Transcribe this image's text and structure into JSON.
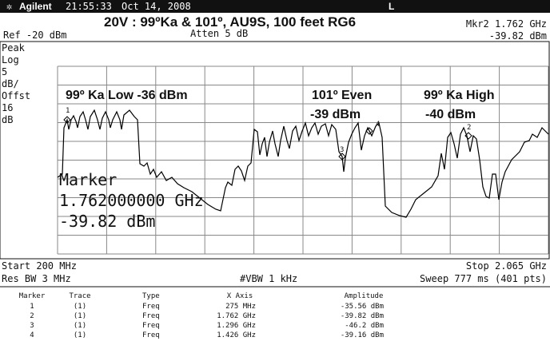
{
  "header": {
    "brand": "Agilent",
    "time": "21:55:33",
    "date": "Oct 14, 2008",
    "mode": "L"
  },
  "title": "20V : 99ºKa & 101º, AU9S, 100 feet RG6",
  "readouts": {
    "marker": "Mkr2  1.762 GHz",
    "ref": "Ref -20 dBm",
    "atten": "Atten 5 dB",
    "marker_amplitude": "-39.82 dBm"
  },
  "side_labels": [
    "Peak",
    "Log",
    "5",
    "dB/",
    "Offst",
    "16",
    "dB"
  ],
  "annotations": [
    "99º Ka Low -36 dBm",
    "101º Even",
    "-39 dBm",
    "99º Ka High",
    "-40 dBm"
  ],
  "marker_numbers": [
    "1",
    "2",
    "3",
    "4"
  ],
  "marker_box": [
    "Marker",
    "1.762000000 GHz",
    "-39.82 dBm"
  ],
  "footer": {
    "start": "Start 200 MHz",
    "stop": "Stop 2.065 GHz",
    "rbw": "Res BW 3 MHz",
    "vbw": "#VBW 1 kHz",
    "sweep": "Sweep 777 ms (401 pts)"
  },
  "table": {
    "columns": [
      "Marker",
      "Trace",
      "Type",
      "X Axis",
      "Amplitude"
    ],
    "rows": [
      [
        "1",
        "(1)",
        "Freq",
        "275 MHz",
        "-35.56 dBm"
      ],
      [
        "2",
        "(1)",
        "Freq",
        "1.762 GHz",
        "-39.82 dBm"
      ],
      [
        "3",
        "(1)",
        "Freq",
        "1.296 GHz",
        "-46.2 dBm"
      ],
      [
        "4",
        "(1)",
        "Freq",
        "1.426 GHz",
        "-39.16 dBm"
      ]
    ]
  }
}
